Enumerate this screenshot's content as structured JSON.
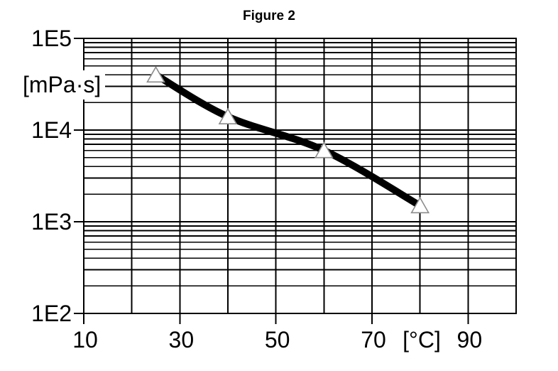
{
  "title": "Figure 2",
  "y_axis": {
    "unit": "[mPa·s]",
    "scale": "log",
    "tick_labels": [
      "1E5",
      "1E4",
      "1E3",
      "1E2"
    ],
    "tick_values": [
      100000,
      10000,
      1000,
      100
    ]
  },
  "x_axis": {
    "unit": "[°C]",
    "tick_values": [
      10,
      30,
      50,
      70,
      90
    ],
    "gridline_step": 10,
    "range": [
      10,
      100
    ]
  },
  "chart_data": {
    "type": "line",
    "title": "Figure 2",
    "xlabel": "[°C]",
    "ylabel": "[mPa·s]",
    "x": [
      25,
      40,
      60,
      80
    ],
    "y": [
      40000,
      14000,
      6000,
      1500
    ],
    "xlim": [
      10,
      100
    ],
    "ylim": [
      100,
      100000
    ],
    "yscale": "log",
    "grid": true,
    "legend": "none",
    "marker": "triangle-up",
    "line_color": "#000000",
    "line_width": 10,
    "marker_fill": "#ffffff",
    "marker_stroke": "#8c8c8c"
  }
}
